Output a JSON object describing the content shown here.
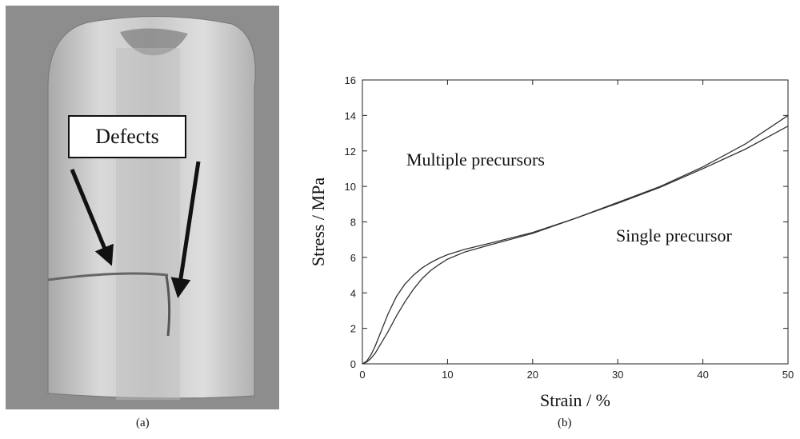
{
  "figure": {
    "panel_a": {
      "caption": "(a)",
      "callout": "Defects",
      "colors": {
        "background": "#8d8d8d",
        "metal": "#d8d8d8",
        "arrow": "#111111"
      }
    },
    "panel_b_caption": "(b)"
  },
  "chart_data": {
    "type": "line",
    "title": "",
    "xlabel": "Strain /  %",
    "ylabel": "Stress / MPa",
    "xlim": [
      0,
      50
    ],
    "ylim": [
      0,
      16
    ],
    "xticks": [
      0,
      10,
      20,
      30,
      40,
      50
    ],
    "yticks": [
      0,
      2,
      4,
      6,
      8,
      10,
      12,
      14,
      16
    ],
    "grid": false,
    "legend": "none",
    "annotations": [
      "Multiple precursors",
      "Single precursor"
    ],
    "line_color": "#333333",
    "series": [
      {
        "x": [
          0,
          0.5,
          1,
          1.5,
          2,
          3,
          4,
          5,
          6,
          7,
          8,
          9,
          10,
          12,
          15,
          20,
          25,
          30,
          35,
          40,
          45,
          50
        ],
        "values": [
          0,
          0.15,
          0.5,
          1.0,
          1.6,
          2.8,
          3.8,
          4.5,
          5.0,
          5.4,
          5.7,
          5.95,
          6.15,
          6.45,
          6.8,
          7.4,
          8.2,
          9.1,
          10.0,
          11.1,
          12.4,
          14.0
        ]
      },
      {
        "x": [
          0,
          0.5,
          1,
          1.5,
          2,
          3,
          4,
          5,
          6,
          7,
          8,
          9,
          10,
          12,
          15,
          20,
          25,
          30,
          35,
          40,
          45,
          50
        ],
        "values": [
          0,
          0.1,
          0.3,
          0.6,
          1.0,
          1.8,
          2.7,
          3.5,
          4.2,
          4.8,
          5.25,
          5.6,
          5.9,
          6.3,
          6.7,
          7.35,
          8.2,
          9.05,
          9.95,
          11.0,
          12.1,
          13.4
        ]
      }
    ]
  }
}
